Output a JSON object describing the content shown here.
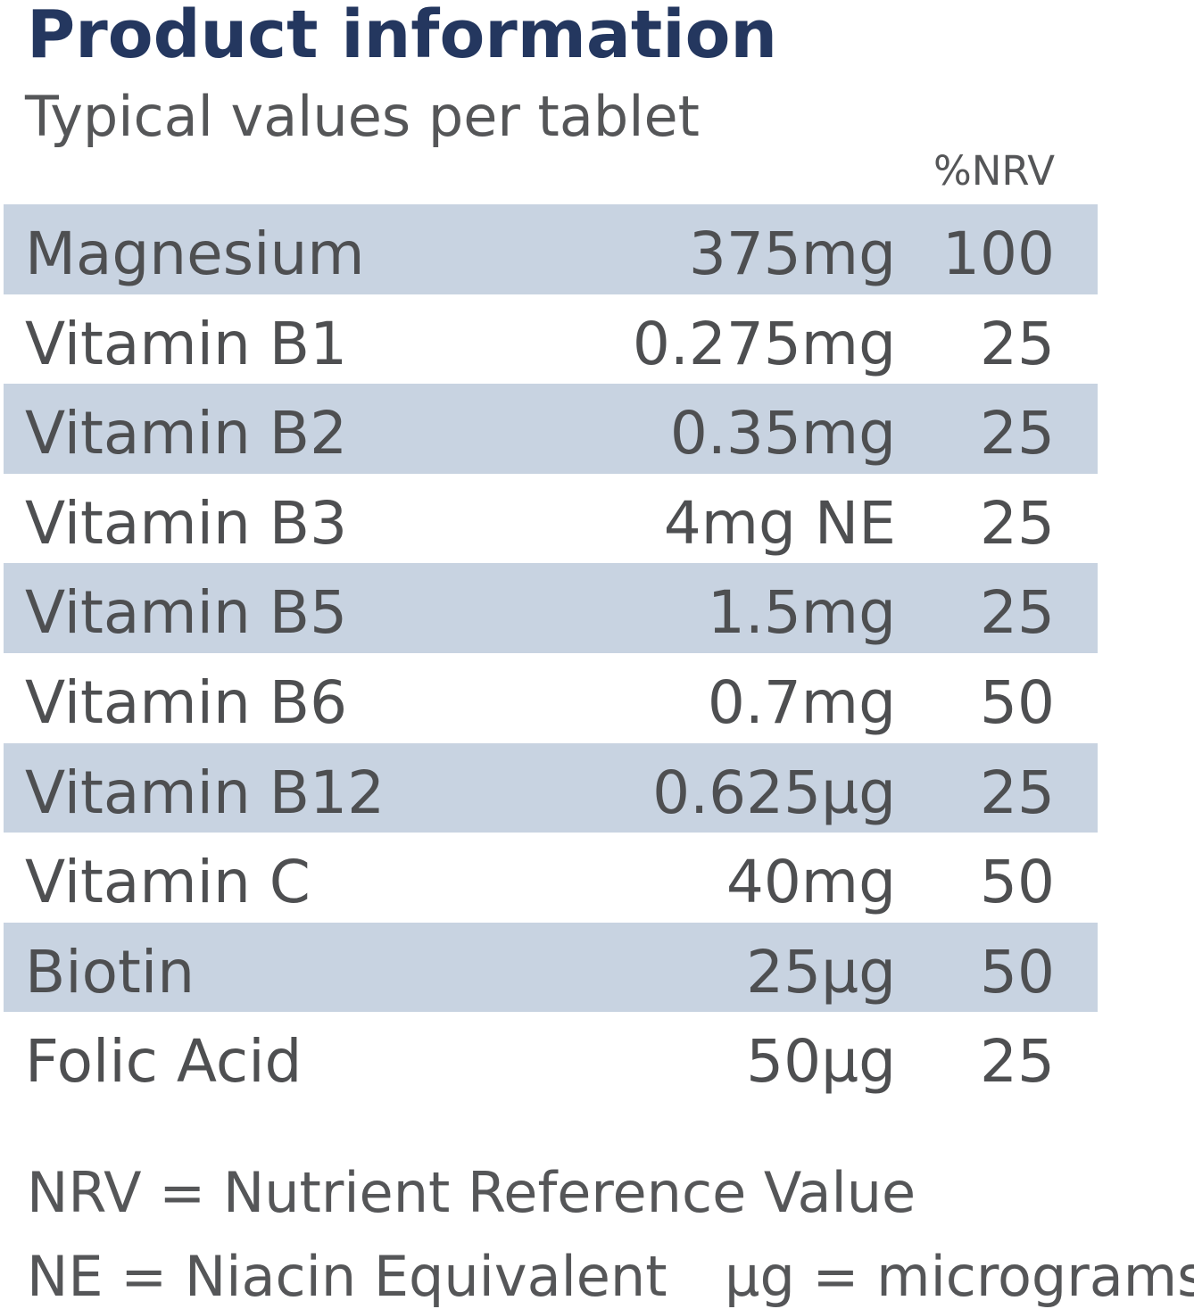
{
  "title": "Product information",
  "subtitle": "Typical values per tablet",
  "table": {
    "nrv_header": "%NRV",
    "rows": [
      {
        "nutrient": "Magnesium",
        "amount": "375mg",
        "nrv": "100"
      },
      {
        "nutrient": "Vitamin B1",
        "amount": "0.275mg",
        "nrv": "25"
      },
      {
        "nutrient": "Vitamin B2",
        "amount": "0.35mg",
        "nrv": "25"
      },
      {
        "nutrient": "Vitamin B3",
        "amount": "4mg NE",
        "nrv": "25"
      },
      {
        "nutrient": "Vitamin B5",
        "amount": "1.5mg",
        "nrv": "25"
      },
      {
        "nutrient": "Vitamin B6",
        "amount": "0.7mg",
        "nrv": "50"
      },
      {
        "nutrient": "Vitamin B12",
        "amount": "0.625µg",
        "nrv": "25"
      },
      {
        "nutrient": "Vitamin C",
        "amount": "40mg",
        "nrv": "50"
      },
      {
        "nutrient": "Biotin",
        "amount": "25µg",
        "nrv": "50"
      },
      {
        "nutrient": "Folic Acid",
        "amount": "50µg",
        "nrv": "25"
      }
    ]
  },
  "footnotes": {
    "nrv": "NRV = Nutrient Reference Value",
    "ne": "NE = Niacin Equivalent",
    "ug": "µg = micrograms"
  },
  "colors": {
    "title": "#24375f",
    "text": "#4e4f51",
    "row_shade": "#c8d3e1"
  }
}
